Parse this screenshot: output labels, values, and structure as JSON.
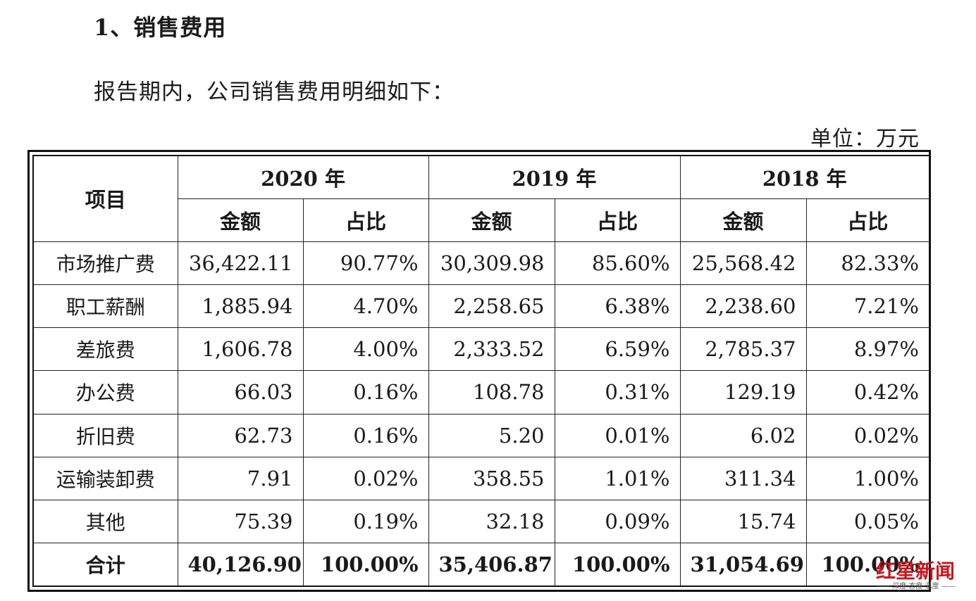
{
  "heading": "1、销售费用",
  "intro": "报告期内，公司销售费用明细如下：",
  "unit": "单位：万元",
  "table": {
    "item_header": "项目",
    "years": [
      "2020 年",
      "2019 年",
      "2018 年"
    ],
    "sub_headers": [
      "金额",
      "占比"
    ],
    "rows": [
      {
        "label": "市场推广费",
        "values": [
          "36,422.11",
          "90.77%",
          "30,309.98",
          "85.60%",
          "25,568.42",
          "82.33%"
        ]
      },
      {
        "label": "职工薪酬",
        "values": [
          "1,885.94",
          "4.70%",
          "2,258.65",
          "6.38%",
          "2,238.60",
          "7.21%"
        ]
      },
      {
        "label": "差旅费",
        "values": [
          "1,606.78",
          "4.00%",
          "2,333.52",
          "6.59%",
          "2,785.37",
          "8.97%"
        ]
      },
      {
        "label": "办公费",
        "values": [
          "66.03",
          "0.16%",
          "108.78",
          "0.31%",
          "129.19",
          "0.42%"
        ]
      },
      {
        "label": "折旧费",
        "values": [
          "62.73",
          "0.16%",
          "5.20",
          "0.01%",
          "6.02",
          "0.02%"
        ]
      },
      {
        "label": "运输装卸费",
        "values": [
          "7.91",
          "0.02%",
          "358.55",
          "1.01%",
          "311.34",
          "1.00%"
        ]
      },
      {
        "label": "其他",
        "values": [
          "75.39",
          "0.19%",
          "32.18",
          "0.09%",
          "15.74",
          "0.05%"
        ]
      }
    ],
    "total": {
      "label": "合计",
      "values": [
        "40,126.90",
        "100.00%",
        "35,406.87",
        "100.00%",
        "31,054.69",
        "100.00%"
      ]
    }
  },
  "watermark": {
    "main": "红星新闻",
    "sub": "—— 深度 态度 温度 ——"
  }
}
